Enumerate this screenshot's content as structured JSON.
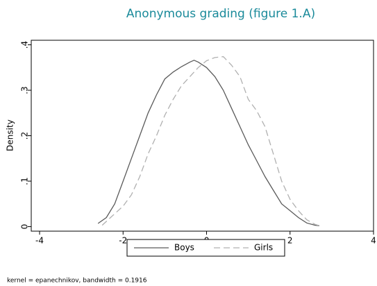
{
  "chart_data": {
    "type": "line",
    "title": "Anonymous grading (figure 1.A)",
    "ylabel": "Density",
    "note": "kernel = epanechnikov, bandwidth = 0.1916",
    "xlim": [
      -4.2,
      4.0
    ],
    "ylim": [
      -0.01,
      0.41
    ],
    "xticks": [
      -4,
      -2,
      0,
      2,
      4
    ],
    "yticks": [
      0,
      {
        "value": 0.1,
        "label": ".1"
      },
      {
        "value": 0.2,
        "label": ".2"
      },
      {
        "value": 0.3,
        "label": ".3"
      },
      {
        "value": 0.4,
        "label": ".4"
      }
    ],
    "legend": "bottom",
    "series": [
      {
        "name": "Boys",
        "color": "#5a5a5a",
        "dash": false,
        "x": [
          -2.6,
          -2.4,
          -2.2,
          -2.0,
          -1.8,
          -1.6,
          -1.4,
          -1.2,
          -1.0,
          -0.8,
          -0.6,
          -0.4,
          -0.3,
          -0.2,
          0,
          0.2,
          0.4,
          0.6,
          0.8,
          1.0,
          1.2,
          1.4,
          1.6,
          1.8,
          2.0,
          2.2,
          2.4,
          2.6,
          2.7
        ],
        "values": [
          0.007,
          0.02,
          0.05,
          0.1,
          0.15,
          0.2,
          0.25,
          0.29,
          0.325,
          0.34,
          0.352,
          0.362,
          0.366,
          0.362,
          0.35,
          0.33,
          0.3,
          0.26,
          0.22,
          0.18,
          0.145,
          0.11,
          0.08,
          0.05,
          0.035,
          0.02,
          0.008,
          0.003,
          0.002
        ]
      },
      {
        "name": "Girls",
        "color": "#b0b0b0",
        "dash": true,
        "x": [
          -2.5,
          -2.3,
          -2.0,
          -1.8,
          -1.6,
          -1.4,
          -1.2,
          -1.0,
          -0.8,
          -0.6,
          -0.4,
          -0.2,
          0,
          0.2,
          0.4,
          0.6,
          0.8,
          1.0,
          1.2,
          1.4,
          1.6,
          1.8,
          2.0,
          2.2,
          2.4,
          2.6,
          2.7
        ],
        "values": [
          0.003,
          0.02,
          0.045,
          0.07,
          0.11,
          0.16,
          0.2,
          0.245,
          0.28,
          0.31,
          0.33,
          0.35,
          0.365,
          0.372,
          0.374,
          0.355,
          0.33,
          0.28,
          0.255,
          0.22,
          0.16,
          0.1,
          0.06,
          0.035,
          0.015,
          0.005,
          0.002
        ]
      }
    ]
  }
}
